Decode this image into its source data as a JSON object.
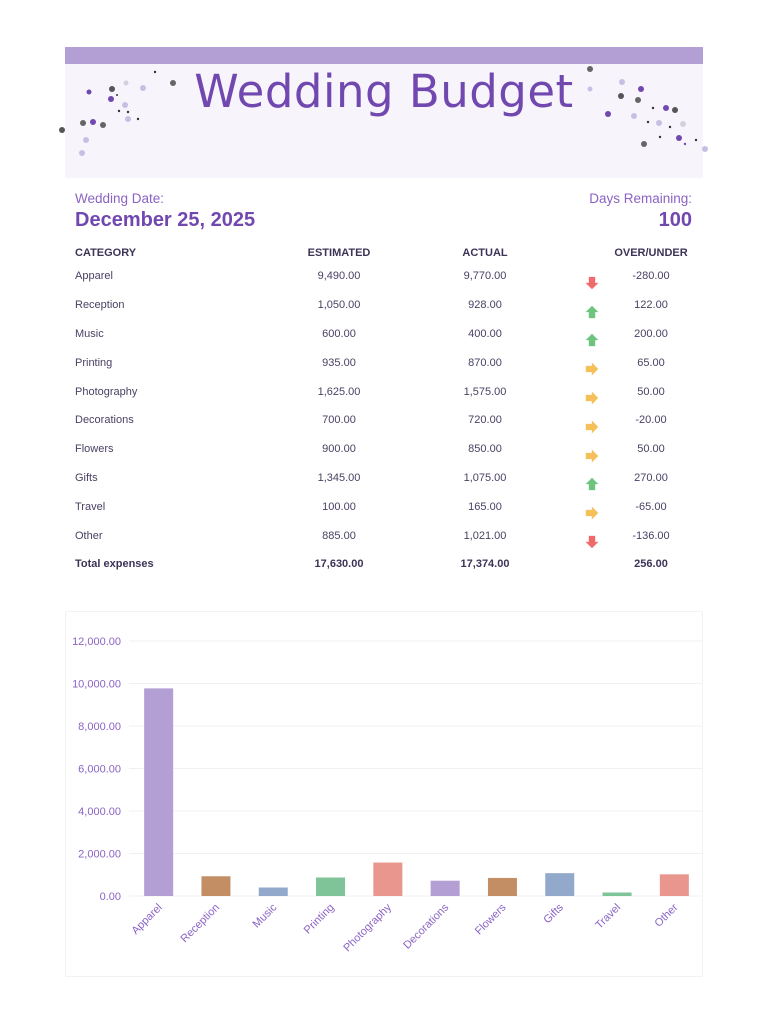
{
  "header": {
    "title": "Wedding Budget",
    "bar_color": "#b39fd4",
    "title_color": "#7148b0"
  },
  "info": {
    "date_label": "Wedding Date:",
    "date_value": "December 25, 2025",
    "days_label": "Days Remaining:",
    "days_value": "100"
  },
  "table": {
    "headers": [
      "CATEGORY",
      "ESTIMATED",
      "ACTUAL",
      "",
      "OVER/UNDER"
    ],
    "rows": [
      {
        "category": "Apparel",
        "estimated": "9,490.00",
        "actual": "9,770.00",
        "indicator": "down-arrow-icon",
        "diff": "-280.00"
      },
      {
        "category": "Reception",
        "estimated": "1,050.00",
        "actual": "928.00",
        "indicator": "up-arrow-icon",
        "diff": "122.00"
      },
      {
        "category": "Music",
        "estimated": "600.00",
        "actual": "400.00",
        "indicator": "up-arrow-icon",
        "diff": "200.00"
      },
      {
        "category": "Printing",
        "estimated": "935.00",
        "actual": "870.00",
        "indicator": "right-arrow-icon",
        "diff": "65.00"
      },
      {
        "category": "Photography",
        "estimated": "1,625.00",
        "actual": "1,575.00",
        "indicator": "right-arrow-icon",
        "diff": "50.00"
      },
      {
        "category": "Decorations",
        "estimated": "700.00",
        "actual": "720.00",
        "indicator": "right-arrow-icon",
        "diff": "-20.00"
      },
      {
        "category": "Flowers",
        "estimated": "900.00",
        "actual": "850.00",
        "indicator": "right-arrow-icon",
        "diff": "50.00"
      },
      {
        "category": "Gifts",
        "estimated": "1,345.00",
        "actual": "1,075.00",
        "indicator": "up-arrow-icon",
        "diff": "270.00"
      },
      {
        "category": "Travel",
        "estimated": "100.00",
        "actual": "165.00",
        "indicator": "right-arrow-icon",
        "diff": "-65.00"
      },
      {
        "category": "Other",
        "estimated": "885.00",
        "actual": "1,021.00",
        "indicator": "down-arrow-icon",
        "diff": "-136.00"
      }
    ],
    "total": {
      "label": "Total expenses",
      "estimated": "17,630.00",
      "actual": "17,374.00",
      "diff": "256.00"
    },
    "indicator_colors": {
      "down-arrow-icon": "#f06a6a",
      "up-arrow-icon": "#6cc47e",
      "right-arrow-icon": "#f5c05a"
    }
  },
  "chart_data": {
    "type": "bar",
    "title": "",
    "xlabel": "",
    "ylabel": "",
    "categories": [
      "Apparel",
      "Reception",
      "Music",
      "Printing",
      "Photography",
      "Decorations",
      "Flowers",
      "Gifts",
      "Travel",
      "Other"
    ],
    "values": [
      9770,
      928,
      400,
      870,
      1575,
      720,
      850,
      1075,
      165,
      1021
    ],
    "colors": [
      "#b39fd4",
      "#c48e65",
      "#93a9cc",
      "#7fc498",
      "#e9968f",
      "#b39fd4",
      "#c48e65",
      "#93a9cc",
      "#7fc498",
      "#e9968f"
    ],
    "ylim": [
      0,
      12000
    ],
    "yticks": [
      0,
      2000,
      4000,
      6000,
      8000,
      10000,
      12000
    ],
    "ytick_labels": [
      "0.00",
      "2,000.00",
      "4,000.00",
      "6,000.00",
      "8,000.00",
      "10,000.00",
      "12,000.00"
    ],
    "grid": true,
    "legend": "none",
    "label_color": "#8a63c4"
  }
}
